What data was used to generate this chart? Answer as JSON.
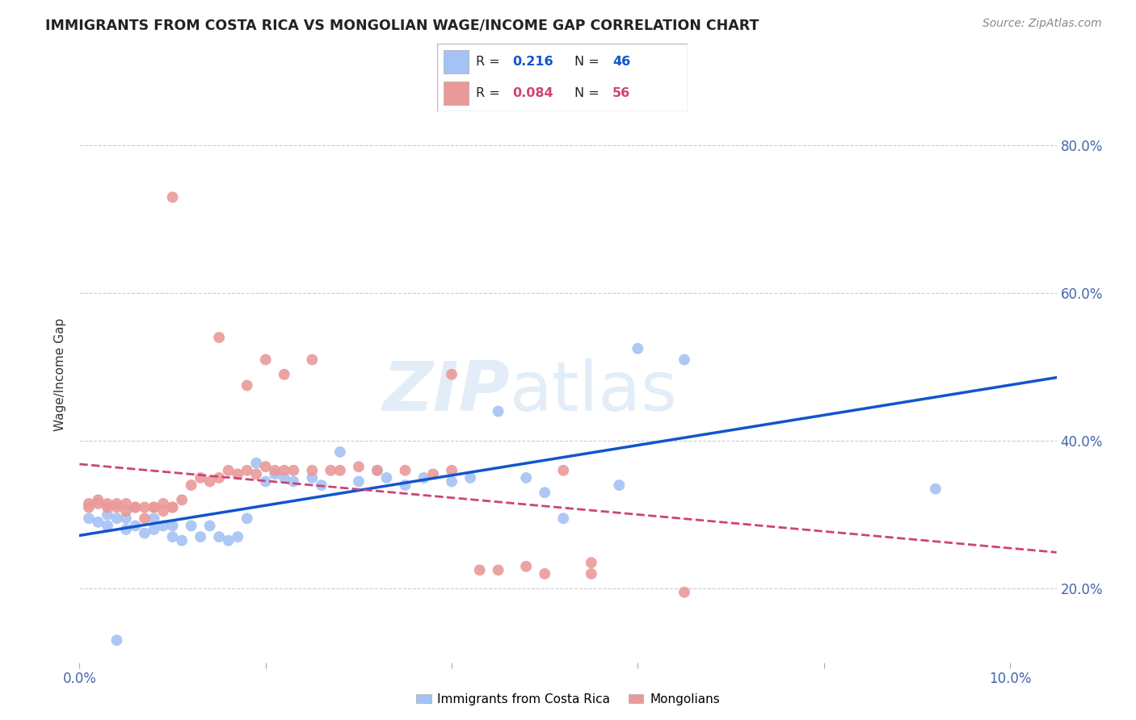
{
  "title": "IMMIGRANTS FROM COSTA RICA VS MONGOLIAN WAGE/INCOME GAP CORRELATION CHART",
  "source": "Source: ZipAtlas.com",
  "ylabel": "Wage/Income Gap",
  "legend_label_blue": "Immigrants from Costa Rica",
  "legend_label_pink": "Mongolians",
  "legend_r_blue": "0.216",
  "legend_n_blue": "46",
  "legend_r_pink": "0.084",
  "legend_n_pink": "56",
  "blue_color": "#a4c2f4",
  "pink_color": "#ea9999",
  "line_blue": "#1155cc",
  "line_pink": "#cc4477",
  "blue_scatter_x": [
    0.001,
    0.002,
    0.003,
    0.003,
    0.004,
    0.005,
    0.005,
    0.006,
    0.007,
    0.008,
    0.008,
    0.009,
    0.01,
    0.01,
    0.011,
    0.012,
    0.013,
    0.014,
    0.015,
    0.016,
    0.017,
    0.018,
    0.019,
    0.02,
    0.021,
    0.022,
    0.023,
    0.025,
    0.026,
    0.028,
    0.03,
    0.032,
    0.033,
    0.035,
    0.037,
    0.04,
    0.042,
    0.045,
    0.048,
    0.05,
    0.052,
    0.058,
    0.06,
    0.065,
    0.092,
    0.004
  ],
  "blue_scatter_y": [
    0.295,
    0.29,
    0.285,
    0.3,
    0.295,
    0.28,
    0.295,
    0.285,
    0.275,
    0.28,
    0.295,
    0.285,
    0.27,
    0.285,
    0.265,
    0.285,
    0.27,
    0.285,
    0.27,
    0.265,
    0.27,
    0.295,
    0.37,
    0.345,
    0.355,
    0.35,
    0.345,
    0.35,
    0.34,
    0.385,
    0.345,
    0.36,
    0.35,
    0.34,
    0.35,
    0.345,
    0.35,
    0.44,
    0.35,
    0.33,
    0.295,
    0.34,
    0.525,
    0.51,
    0.335,
    0.13
  ],
  "pink_scatter_x": [
    0.001,
    0.001,
    0.002,
    0.002,
    0.003,
    0.003,
    0.004,
    0.004,
    0.005,
    0.005,
    0.006,
    0.006,
    0.007,
    0.007,
    0.008,
    0.008,
    0.009,
    0.009,
    0.01,
    0.01,
    0.011,
    0.012,
    0.013,
    0.014,
    0.015,
    0.016,
    0.017,
    0.018,
    0.019,
    0.02,
    0.021,
    0.022,
    0.023,
    0.025,
    0.027,
    0.028,
    0.03,
    0.032,
    0.035,
    0.038,
    0.04,
    0.043,
    0.045,
    0.048,
    0.05,
    0.052,
    0.055,
    0.04,
    0.015,
    0.018,
    0.02,
    0.022,
    0.025,
    0.055,
    0.065,
    0.01
  ],
  "pink_scatter_y": [
    0.315,
    0.31,
    0.315,
    0.32,
    0.31,
    0.315,
    0.31,
    0.315,
    0.305,
    0.315,
    0.31,
    0.31,
    0.295,
    0.31,
    0.31,
    0.31,
    0.315,
    0.305,
    0.31,
    0.31,
    0.32,
    0.34,
    0.35,
    0.345,
    0.35,
    0.36,
    0.355,
    0.36,
    0.355,
    0.365,
    0.36,
    0.36,
    0.36,
    0.36,
    0.36,
    0.36,
    0.365,
    0.36,
    0.36,
    0.355,
    0.36,
    0.225,
    0.225,
    0.23,
    0.22,
    0.36,
    0.235,
    0.49,
    0.54,
    0.475,
    0.51,
    0.49,
    0.51,
    0.22,
    0.195,
    0.73
  ],
  "xlim": [
    0.0,
    0.105
  ],
  "ylim": [
    0.1,
    0.88
  ],
  "y_ticks": [
    0.2,
    0.4,
    0.6,
    0.8
  ],
  "y_tick_labels": [
    "20.0%",
    "40.0%",
    "60.0%",
    "80.0%"
  ],
  "x_ticks": [
    0.0,
    0.02,
    0.04,
    0.06,
    0.08,
    0.1
  ],
  "x_tick_labels": [
    "0.0%",
    "",
    "",
    "",
    "",
    "10.0%"
  ]
}
